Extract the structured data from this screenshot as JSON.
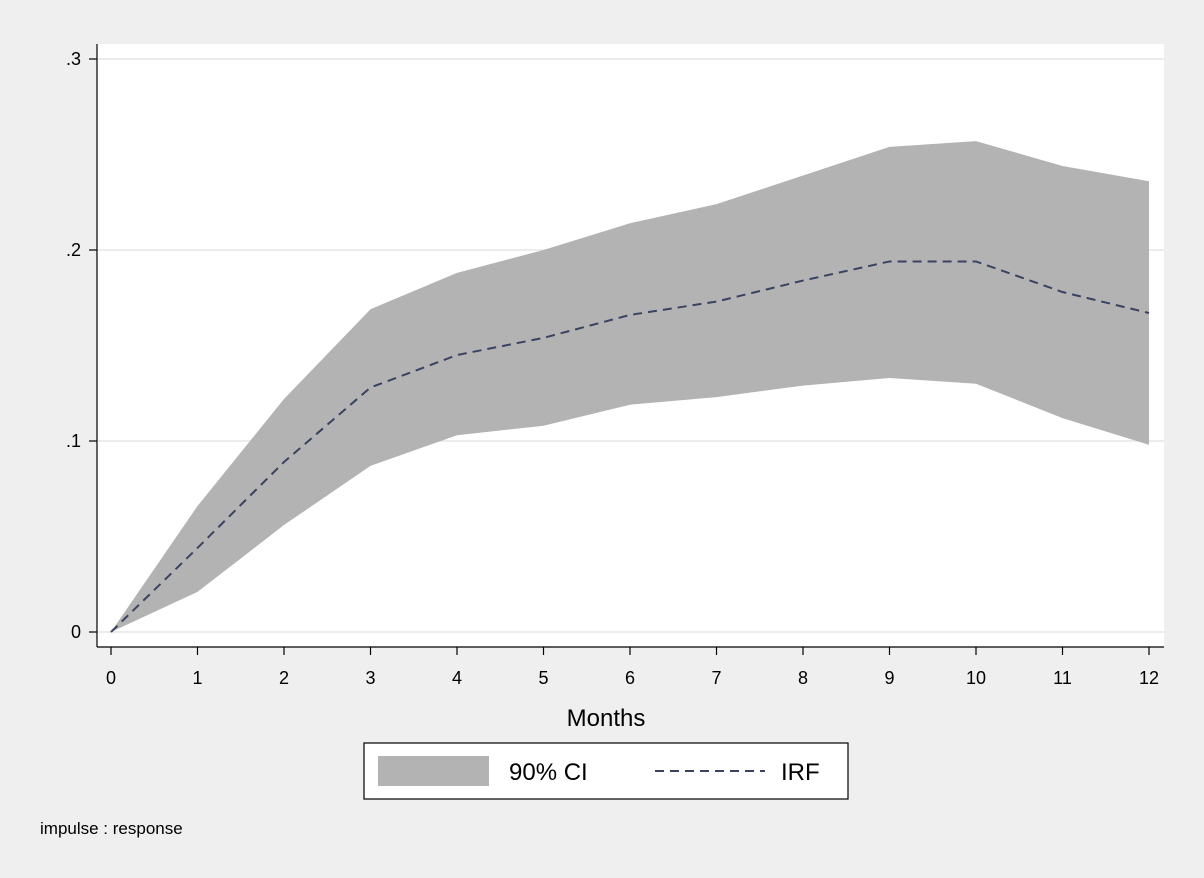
{
  "chart_data": {
    "type": "area",
    "xlabel": "Months",
    "ylabel": "",
    "title": "",
    "xlim": [
      0,
      12
    ],
    "ylim": [
      0,
      0.3
    ],
    "x_ticks": [
      0,
      1,
      2,
      3,
      4,
      5,
      6,
      7,
      8,
      9,
      10,
      11,
      12
    ],
    "x_tick_labels": [
      "0",
      "1",
      "2",
      "3",
      "4",
      "5",
      "6",
      "7",
      "8",
      "9",
      "10",
      "11",
      "12"
    ],
    "y_ticks": [
      0,
      0.1,
      0.2,
      0.3
    ],
    "y_tick_labels": [
      "0",
      ".1",
      ".2",
      ".3"
    ],
    "grid": "horizontal",
    "legend_position": "bottom",
    "x": [
      0,
      1,
      2,
      3,
      4,
      5,
      6,
      7,
      8,
      9,
      10,
      11,
      12
    ],
    "series": [
      {
        "name": "90% CI",
        "type": "band",
        "lower": [
          0,
          0.021,
          0.056,
          0.087,
          0.103,
          0.108,
          0.119,
          0.123,
          0.129,
          0.133,
          0.13,
          0.112,
          0.098
        ],
        "upper": [
          0,
          0.066,
          0.122,
          0.169,
          0.188,
          0.2,
          0.214,
          0.224,
          0.239,
          0.254,
          0.257,
          0.244,
          0.236
        ],
        "color": "#b3b3b3"
      },
      {
        "name": "IRF",
        "type": "line",
        "style": "dashed",
        "values": [
          0,
          0.044,
          0.089,
          0.128,
          0.145,
          0.154,
          0.166,
          0.173,
          0.184,
          0.194,
          0.194,
          0.178,
          0.167
        ],
        "color": "#3a4261"
      }
    ],
    "note": "impulse : response"
  },
  "colors": {
    "background": "#efefef",
    "plot_background": "#ffffff",
    "grid": "#e6e6e6",
    "axis": "#000000"
  }
}
